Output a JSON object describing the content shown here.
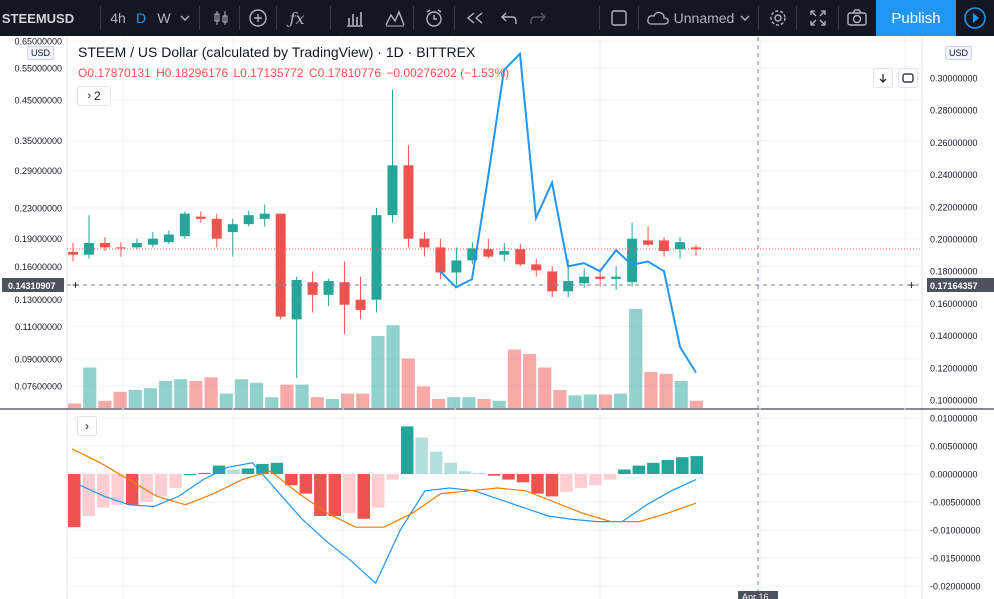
{
  "toolbar": {
    "symbol": "STEEMUSD",
    "intervals": [
      "4h",
      "D",
      "W"
    ],
    "layout_name": "Unnamed",
    "publish_label": "Publish",
    "icons": [
      "candles-icon",
      "add-indicator-icon",
      "fx-icon",
      "bar-compare-icon",
      "templates-icon",
      "alert-icon",
      "replay-icon",
      "undo-icon",
      "redo-icon",
      "fullscreen-square-icon",
      "cloud-icon",
      "gear-icon",
      "expand-icon",
      "camera-icon",
      "play-icon"
    ]
  },
  "legend": {
    "title": "STEEM / US Dollar (calculated by TradingView) · 1D · BITTREX",
    "open": "O0.17870131",
    "high": "H0.18296176",
    "low": "L0.17135772",
    "close": "C0.17810776",
    "change": "−0.00276202 (−1.53%)",
    "collapse_count": "2",
    "left_currency": "USD",
    "right_currency": "USD"
  },
  "colors": {
    "up": "#26a69a",
    "down": "#ef5350",
    "line": "#2196f3",
    "signal": "#f57c00"
  },
  "chart_data": {
    "type": "candlestick",
    "left_axis": {
      "labels": [
        "0.65000000",
        "0.55000000",
        "0.45000000",
        "0.35000000",
        "0.29000000",
        "0.23000000",
        "0.19000000",
        "0.16000000",
        "0.13000000",
        "0.11000000",
        "0.09000000",
        "0.07600000"
      ],
      "crosshair_value": "0.14310907",
      "log_scale": true
    },
    "right_axis": {
      "labels": [
        "0.30000000",
        "0.28000000",
        "0.26000000",
        "0.24000000",
        "0.22000000",
        "0.20000000",
        "0.18000000",
        "0.16000000",
        "0.14000000",
        "0.12000000",
        "0.10000000"
      ],
      "crosshair_value": "0.17164357"
    },
    "indicator_axis": {
      "labels": [
        "0.01000000",
        "0.00500000",
        "0.00000000",
        "-0.00500000",
        "-0.01000000",
        "-0.01500000",
        "-0.02000000"
      ]
    },
    "candles": [
      {
        "o": 0.175,
        "h": 0.185,
        "l": 0.165,
        "c": 0.172
      },
      {
        "o": 0.172,
        "h": 0.22,
        "l": 0.168,
        "c": 0.185
      },
      {
        "o": 0.185,
        "h": 0.192,
        "l": 0.176,
        "c": 0.18
      },
      {
        "o": 0.18,
        "h": 0.186,
        "l": 0.17,
        "c": 0.179
      },
      {
        "o": 0.18,
        "h": 0.19,
        "l": 0.178,
        "c": 0.185
      },
      {
        "o": 0.183,
        "h": 0.198,
        "l": 0.18,
        "c": 0.19
      },
      {
        "o": 0.186,
        "h": 0.2,
        "l": 0.184,
        "c": 0.195
      },
      {
        "o": 0.193,
        "h": 0.225,
        "l": 0.19,
        "c": 0.222
      },
      {
        "o": 0.218,
        "h": 0.225,
        "l": 0.21,
        "c": 0.215
      },
      {
        "o": 0.215,
        "h": 0.222,
        "l": 0.18,
        "c": 0.19
      },
      {
        "o": 0.198,
        "h": 0.215,
        "l": 0.17,
        "c": 0.208
      },
      {
        "o": 0.208,
        "h": 0.226,
        "l": 0.205,
        "c": 0.22
      },
      {
        "o": 0.215,
        "h": 0.235,
        "l": 0.205,
        "c": 0.222
      },
      {
        "o": 0.222,
        "h": 0.222,
        "l": 0.115,
        "c": 0.117
      },
      {
        "o": 0.115,
        "h": 0.15,
        "l": 0.08,
        "c": 0.147
      },
      {
        "o": 0.145,
        "h": 0.155,
        "l": 0.12,
        "c": 0.134
      },
      {
        "o": 0.134,
        "h": 0.148,
        "l": 0.125,
        "c": 0.146
      },
      {
        "o": 0.145,
        "h": 0.165,
        "l": 0.105,
        "c": 0.126
      },
      {
        "o": 0.13,
        "h": 0.15,
        "l": 0.115,
        "c": 0.122
      },
      {
        "o": 0.13,
        "h": 0.23,
        "l": 0.12,
        "c": 0.22
      },
      {
        "o": 0.22,
        "h": 0.48,
        "l": 0.21,
        "c": 0.3
      },
      {
        "o": 0.3,
        "h": 0.34,
        "l": 0.18,
        "c": 0.19
      },
      {
        "o": 0.19,
        "h": 0.198,
        "l": 0.17,
        "c": 0.18
      },
      {
        "o": 0.18,
        "h": 0.19,
        "l": 0.148,
        "c": 0.154
      },
      {
        "o": 0.154,
        "h": 0.18,
        "l": 0.142,
        "c": 0.166
      },
      {
        "o": 0.166,
        "h": 0.186,
        "l": 0.162,
        "c": 0.179
      },
      {
        "o": 0.178,
        "h": 0.19,
        "l": 0.168,
        "c": 0.17
      },
      {
        "o": 0.172,
        "h": 0.185,
        "l": 0.165,
        "c": 0.176
      },
      {
        "o": 0.178,
        "h": 0.184,
        "l": 0.16,
        "c": 0.162
      },
      {
        "o": 0.162,
        "h": 0.168,
        "l": 0.15,
        "c": 0.156
      },
      {
        "o": 0.155,
        "h": 0.16,
        "l": 0.132,
        "c": 0.137
      },
      {
        "o": 0.137,
        "h": 0.167,
        "l": 0.132,
        "c": 0.146
      },
      {
        "o": 0.144,
        "h": 0.158,
        "l": 0.14,
        "c": 0.15
      },
      {
        "o": 0.15,
        "h": 0.158,
        "l": 0.141,
        "c": 0.148
      },
      {
        "o": 0.148,
        "h": 0.16,
        "l": 0.138,
        "c": 0.15
      },
      {
        "o": 0.145,
        "h": 0.21,
        "l": 0.141,
        "c": 0.19
      },
      {
        "o": 0.188,
        "h": 0.205,
        "l": 0.181,
        "c": 0.183
      },
      {
        "o": 0.188,
        "h": 0.192,
        "l": 0.17,
        "c": 0.176
      },
      {
        "o": 0.178,
        "h": 0.192,
        "l": 0.168,
        "c": 0.186
      },
      {
        "o": 0.18,
        "h": 0.183,
        "l": 0.171,
        "c": 0.178
      }
    ],
    "volume": [
      5,
      45,
      8,
      18,
      20,
      22,
      30,
      32,
      30,
      34,
      16,
      32,
      28,
      12,
      26,
      26,
      12,
      10,
      16,
      16,
      80,
      92,
      55,
      24,
      10,
      12,
      12,
      10,
      8,
      65,
      60,
      45,
      20,
      14,
      15,
      15,
      16,
      110,
      40,
      38,
      30,
      8
    ],
    "line_overlay": [
      0.18,
      0.17,
      0.175,
      0.238,
      0.305,
      0.315,
      0.213,
      0.235,
      0.183,
      0.185,
      0.18,
      0.193,
      0.184,
      0.186,
      0.18,
      0.133,
      0.117
    ],
    "macd_hist": [
      -0.0095,
      -0.0075,
      -0.006,
      -0.0055,
      -0.0055,
      -0.005,
      -0.004,
      -0.0025,
      0.0,
      0.0002,
      0.0015,
      0.0008,
      0.001,
      0.0018,
      0.002,
      -0.002,
      -0.0035,
      -0.0075,
      -0.0075,
      -0.007,
      -0.008,
      -0.006,
      -0.001,
      0.0085,
      0.0065,
      0.004,
      0.002,
      0.0005,
      0.0002,
      -0.0003,
      -0.001,
      -0.0015,
      -0.0035,
      -0.004,
      -0.0032,
      -0.0025,
      -0.002,
      -0.001,
      0.0008,
      0.0015,
      0.002,
      0.0025,
      0.003,
      0.0032
    ],
    "macd_line": [
      -0.002,
      -0.004,
      -0.0055,
      -0.0058,
      -0.004,
      -0.001,
      0.0012,
      0.002,
      -0.003,
      -0.008,
      -0.012,
      -0.0155,
      -0.0195,
      -0.01,
      -0.003,
      -0.0025,
      -0.003,
      -0.0045,
      -0.006,
      -0.0075,
      -0.0081,
      -0.0085,
      -0.0085,
      -0.0055,
      -0.003,
      -0.001
    ],
    "macd_signal": [
      0.0045,
      0.002,
      -0.001,
      -0.004,
      -0.0055,
      -0.0035,
      -0.001,
      0.0005,
      -0.0035,
      -0.007,
      -0.0095,
      -0.0095,
      -0.007,
      -0.0035,
      -0.003,
      -0.0025,
      -0.003,
      -0.005,
      -0.007,
      -0.0085,
      -0.0085,
      -0.007,
      -0.0052
    ],
    "x_label": "Apr 16"
  }
}
